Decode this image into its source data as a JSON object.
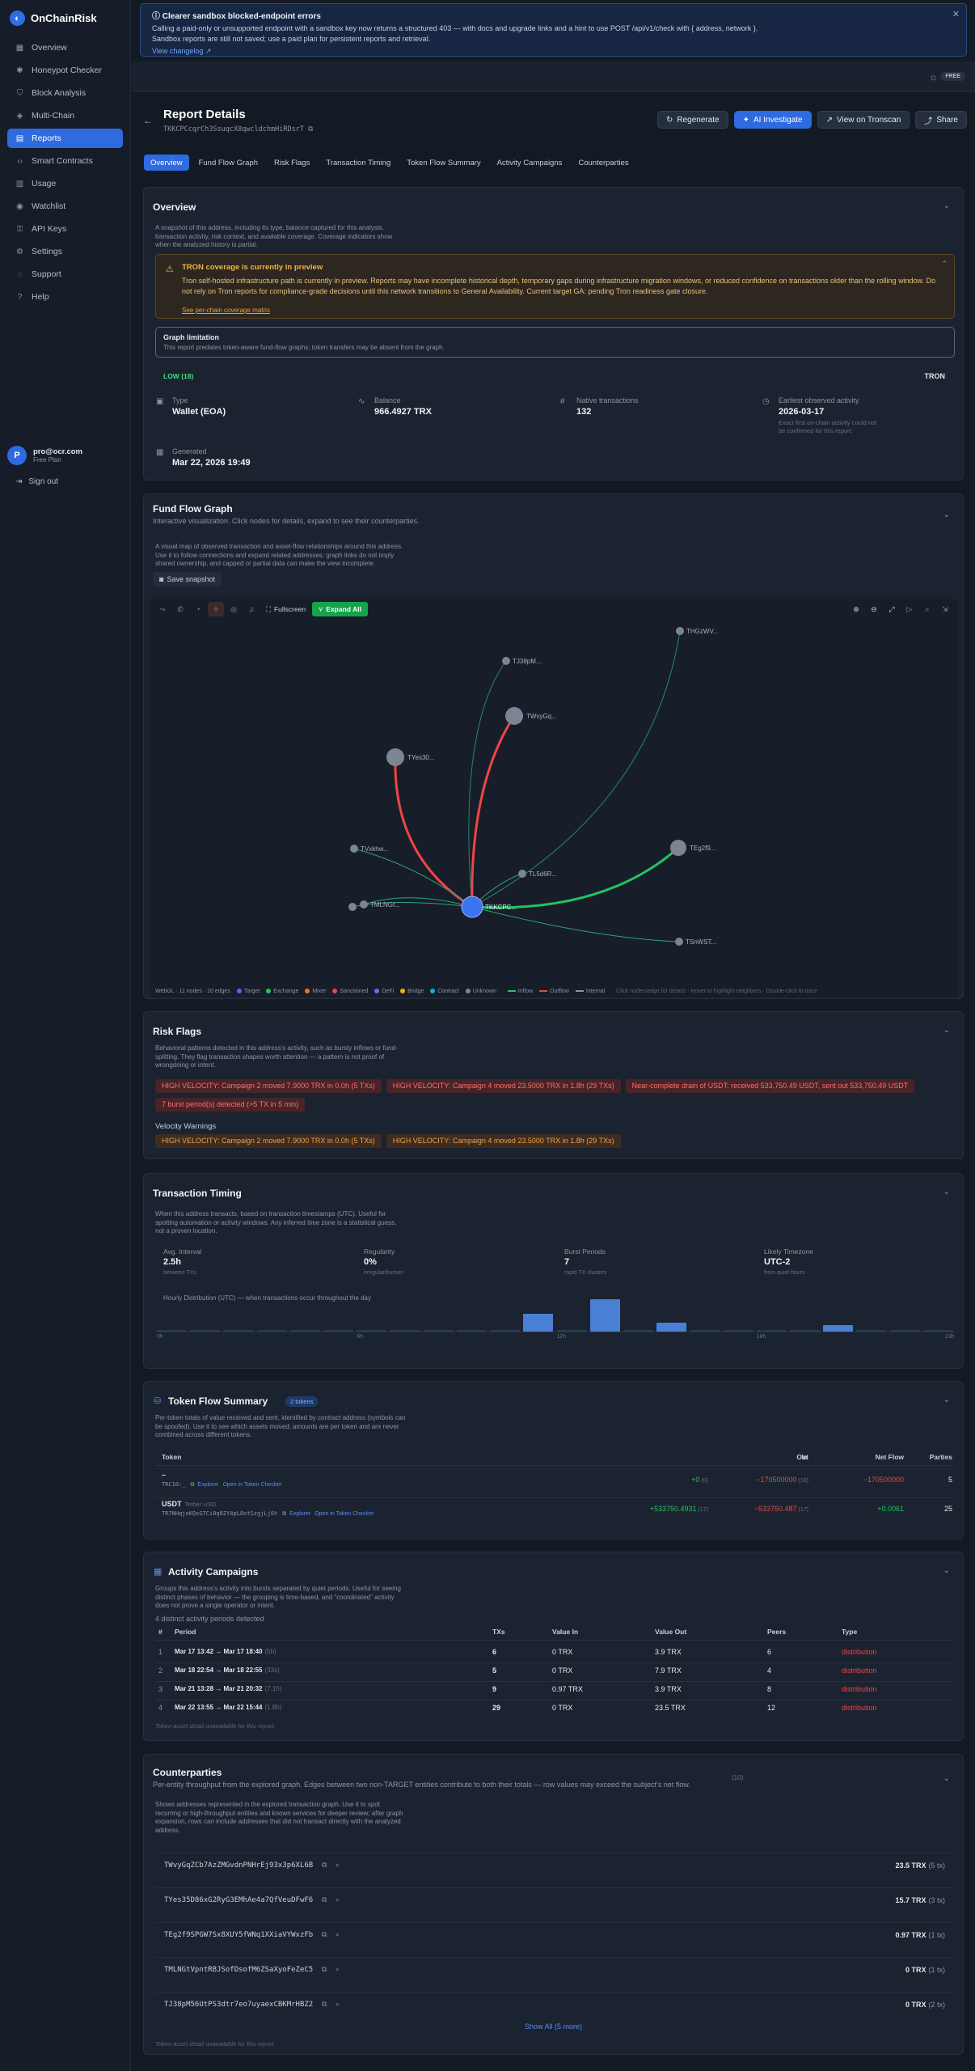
{
  "app": {
    "name": "OnChainRisk",
    "logo_glyph": "◐"
  },
  "nav": [
    {
      "label": "Overview",
      "icon": "grid-icon",
      "glyph": "▦",
      "active": false
    },
    {
      "label": "Honeypot Checker",
      "icon": "bug-icon",
      "glyph": "✱",
      "active": false
    },
    {
      "label": "Block Analysis",
      "icon": "shield-icon",
      "glyph": "⛉",
      "active": false
    },
    {
      "label": "Multi-Chain",
      "icon": "layers-icon",
      "glyph": "◈",
      "active": false
    },
    {
      "label": "Reports",
      "icon": "document-icon",
      "glyph": "▤",
      "active": true
    },
    {
      "label": "Smart Contracts",
      "icon": "code-icon",
      "glyph": "‹›",
      "active": false
    },
    {
      "label": "Usage",
      "icon": "chart-icon",
      "glyph": "▥",
      "active": false
    },
    {
      "label": "Watchlist",
      "icon": "eye-icon",
      "glyph": "◉",
      "active": false
    },
    {
      "label": "API Keys",
      "icon": "key-icon",
      "glyph": "⚿",
      "active": false
    },
    {
      "label": "Settings",
      "icon": "gear-icon",
      "glyph": "⚙",
      "active": false
    },
    {
      "label": "Support",
      "icon": "chat-icon",
      "glyph": "◌",
      "active": false
    },
    {
      "label": "Help",
      "icon": "help-icon",
      "glyph": "?",
      "active": false
    }
  ],
  "user": {
    "initial": "P",
    "email": "pro@ocr.com",
    "plan": "Free Plan",
    "signout": "Sign out"
  },
  "banner": {
    "title": "Clearer sandbox blocked-endpoint errors",
    "line1": "Calling a paid-only or unsupported endpoint with a sandbox key now returns a structured 403 — with docs and upgrade links and a hint to use POST /api/v1/check with { address, network }.",
    "line2": "Sandbox reports are still not saved; use a paid plan for persistent reports and retrieval.",
    "link": "View changelog ↗"
  },
  "topbar": {
    "badge": "FREE"
  },
  "report": {
    "title": "Report Details",
    "address": "TKKCPCcqrCh3SsuqcX8qwcldchmHiRDsrT",
    "buttons": {
      "regenerate": "Regenerate",
      "investigate": "AI Investigate",
      "tronscan": "View on Tronscan",
      "share": "Share"
    }
  },
  "tabs": [
    "Overview",
    "Fund Flow Graph",
    "Risk Flags",
    "Transaction Timing",
    "Token Flow Summary",
    "Activity Campaigns",
    "Counterparties"
  ],
  "overview": {
    "title": "Overview",
    "desc": "A snapshot of this address, including its type, balance captured for this analysis, transaction activity, risk context, and available coverage. Coverage indicators show when the analyzed history is partial.",
    "warn_title": "TRON coverage is currently in preview",
    "warn_text": "Tron self-hosted infrastructure path is currently in preview. Reports may have incomplete historical depth, temporary gaps during infrastructure migration windows, or reduced confidence on transactions older than the rolling window. Do not rely on Tron reports for compliance-grade decisions until this network transitions to General Availability. Current target GA: pending Tron readiness gate closure.",
    "warn_link": "See per-chain coverage matrix",
    "graph_limit_title": "Graph limitation",
    "graph_limit_text": "This report predates token-aware fund-flow graphs; token transfers may be absent from the graph.",
    "risk_level": "LOW (18)",
    "network": "TRON",
    "type_label": "Type",
    "type_value": "Wallet (EOA)",
    "balance_label": "Balance",
    "balance_value": "966.4927 TRX",
    "native_label": "Native transactions",
    "native_value": "132",
    "earliest_label": "Earliest observed activity",
    "earliest_value": "2026-03-17",
    "earliest_note": "Exact first on-chain activity could not be confirmed for this report.",
    "generated_label": "Generated",
    "generated_value": "Mar 22, 2026 19:49"
  },
  "fund_flow": {
    "title": "Fund Flow Graph",
    "subtitle": "Interactive visualization. Click nodes for details, expand to see their counterparties.",
    "desc": "A visual map of observed transaction and asset-flow relationships around this address. Use it to follow connections and expand related addresses; graph links do not imply shared ownership, and capped or partial data can make the view incomplete.",
    "snapshot": "Save snapshot",
    "fullscreen": "Fullscreen",
    "expand": "Expand All",
    "legend": {
      "stats": "WebGL · 11 nodes · 10 edges",
      "target": "Target",
      "exchange": "Exchange",
      "mixer": "Mixer",
      "sanctioned": "Sanctioned",
      "defi": "DeFi",
      "bridge": "Bridge",
      "contract": "Contract",
      "unknown": "Unknown",
      "inflow": "Inflow",
      "outflow": "Outflow",
      "internal": "Internal",
      "hint": "Click nodes/edge for details · Hover to highlight neighbors · Double-click to trace"
    },
    "nodes": {
      "center": "TKKCPC...",
      "n1": "THGzWV...",
      "n2": "TJ38pM...",
      "n3": "TWvyGq...",
      "n4": "TYes30...",
      "n5": "TEg2f9...",
      "n6": "TL5d6R...",
      "n7": "TVxkhw...",
      "n8": "TMLNGt...",
      "n9": "TSnWST..."
    }
  },
  "risk": {
    "title": "Risk Flags",
    "desc": "Behavioral patterns detected in this address's activity, such as bursty inflows or fund-splitting. They flag transaction shapes worth attention — a pattern is not proof of wrongdoing or intent.",
    "flags": [
      "HIGH VELOCITY: Campaign 2 moved 7.9000 TRX in 0.0h (5 TXs)",
      "HIGH VELOCITY: Campaign 4 moved 23.5000 TRX in 1.8h (29 TXs)",
      "Near-complete drain of USDT: received 533,750.49 USDT, sent out 533,750.49 USDT",
      "7 burst period(s) detected (>5 TX in 5 min)"
    ],
    "velocity_title": "Velocity Warnings",
    "velocity": [
      "HIGH VELOCITY: Campaign 2 moved 7.9000 TRX in 0.0h (5 TXs)",
      "HIGH VELOCITY: Campaign 4 moved 23.5000 TRX in 1.8h (29 TXs)"
    ]
  },
  "timing": {
    "title": "Transaction Timing",
    "desc": "When this address transacts, based on transaction timestamps (UTC). Useful for spotting automation or activity windows. Any inferred time zone is a statistical guess, not a proven location.",
    "avg_label": "Avg. Interval",
    "avg_value": "2.5h",
    "avg_sub": "between TXs",
    "reg_label": "Regularity",
    "reg_value": "0%",
    "reg_sub": "irregular/human",
    "burst_label": "Burst Periods",
    "burst_value": "7",
    "burst_sub": "rapid TX clusters",
    "tz_label": "Likely Timezone",
    "tz_value": "UTC-2",
    "tz_sub": "from quiet hours",
    "hist_title": "Hourly Distribution (UTC) — when transactions occur throughout the day",
    "hist_values": [
      0.03,
      0.03,
      0.03,
      0.03,
      0.03,
      0.03,
      0.03,
      0.03,
      0.03,
      0.03,
      0.03,
      0.55,
      0.03,
      1.0,
      0.03,
      0.28,
      0.03,
      0.03,
      0.03,
      0.03,
      0.2,
      0.03,
      0.03,
      0.03
    ],
    "axis": [
      "0h",
      "6h",
      "12h",
      "18h",
      "23h"
    ]
  },
  "token": {
    "title": "Token Flow Summary",
    "badge": "2 tokens",
    "desc": "Per-token totals of value received and sent, identified by contract address (symbols can be spoofed). Use it to see which assets moved; amounts are per token and are never combined across different tokens.",
    "headers": {
      "token": "Token",
      "in": "In",
      "out": "Out",
      "net": "Net Flow",
      "parties": "Parties"
    },
    "rows": [
      {
        "name": "–",
        "sub": "TRC10:_",
        "explorer": "Explorer",
        "checker": "Open in Token Checker",
        "in": "+0",
        "in_tx": "(0)",
        "out": "−170500000",
        "out_tx": "(18)",
        "net": "−170500000",
        "parties": "5"
      },
      {
        "name": "USDT",
        "tag": "Tether USD",
        "sub": "TR7NHqjeKQxGTCi8q8ZY4pL8otSzgjLj6t",
        "explorer": "Explorer",
        "checker": "Open in Token Checker",
        "in": "+533750.4931",
        "in_tx": "(17)",
        "out": "−533750.487",
        "out_tx": "(17)",
        "net": "+0.0061",
        "parties": "25"
      }
    ]
  },
  "campaigns": {
    "title": "Activity Campaigns",
    "desc": "Groups this address's activity into bursts separated by quiet periods. Useful for seeing distinct phases of behavior — the grouping is time-based, and \"coordinated\" activity does not prove a single operator or intent.",
    "count": "4 distinct activity periods detected",
    "headers": {
      "num": "#",
      "period": "Period",
      "txs": "TXs",
      "vin": "Value In",
      "vout": "Value Out",
      "peers": "Peers",
      "type": "Type"
    },
    "rows": [
      {
        "num": "1",
        "period": "Mar 17 13:42 → Mar 17 18:40",
        "dur": "(5h)",
        "txs": "6",
        "vin": "0 TRX",
        "vout": "3.9 TRX",
        "peers": "6",
        "type": "distribution"
      },
      {
        "num": "2",
        "period": "Mar 18 22:54 → Mar 18 22:55",
        "dur": "(33s)",
        "txs": "5",
        "vin": "0 TRX",
        "vout": "7.9 TRX",
        "peers": "4",
        "type": "distribution"
      },
      {
        "num": "3",
        "period": "Mar 21 13:28 → Mar 21 20:32",
        "dur": "(7.1h)",
        "txs": "9",
        "vin": "0.97 TRX",
        "vout": "3.9 TRX",
        "peers": "8",
        "type": "distribution"
      },
      {
        "num": "4",
        "period": "Mar 22 13:55 → Mar 22 15:44",
        "dur": "(1.8h)",
        "txs": "29",
        "vin": "0 TRX",
        "vout": "23.5 TRX",
        "peers": "12",
        "type": "distribution"
      }
    ],
    "footnote": "Token asset detail unavailable for this report."
  },
  "counterparties": {
    "title": "Counterparties",
    "subtitle": "Per-entity throughput from the explored graph. Edges between two non-TARGET entities contribute to both their totals — row values may exceed the subject's net flow.",
    "count": "(10)",
    "desc": "Shows addresses represented in the explored transaction graph. Use it to spot recurring or high-throughput entities and known services for deeper review; after graph expansion, rows can include addresses that did not transact directly with the analyzed address.",
    "rows": [
      {
        "addr": "TWvyGqZCb7AzZMGvdnPNHrEj93x3p6XL6B",
        "value": "23.5 TRX",
        "tx": "(5 tx)"
      },
      {
        "addr": "TYes35D86xG2RyG3EMhAe4a7QfVeuDFwF6",
        "value": "15.7 TRX",
        "tx": "(3 tx)"
      },
      {
        "addr": "TEg2f9SPGW7Sx8XUY5fWNq1XXiaVYWxzFb",
        "value": "0.97 TRX",
        "tx": "(1 tx)"
      },
      {
        "addr": "TMLNGtVpntRBJSofDsofM6ZSaXyoFeZeC5",
        "value": "0 TRX",
        "tx": "(1 tx)"
      },
      {
        "addr": "TJ38pM56UtPS3dtr7eo7uyaexCBKMrHBZ2",
        "value": "0 TRX",
        "tx": "(2 tx)"
      }
    ],
    "show_all": "Show All (5 more)",
    "footnote": "Token asset detail unavailable for this report."
  }
}
